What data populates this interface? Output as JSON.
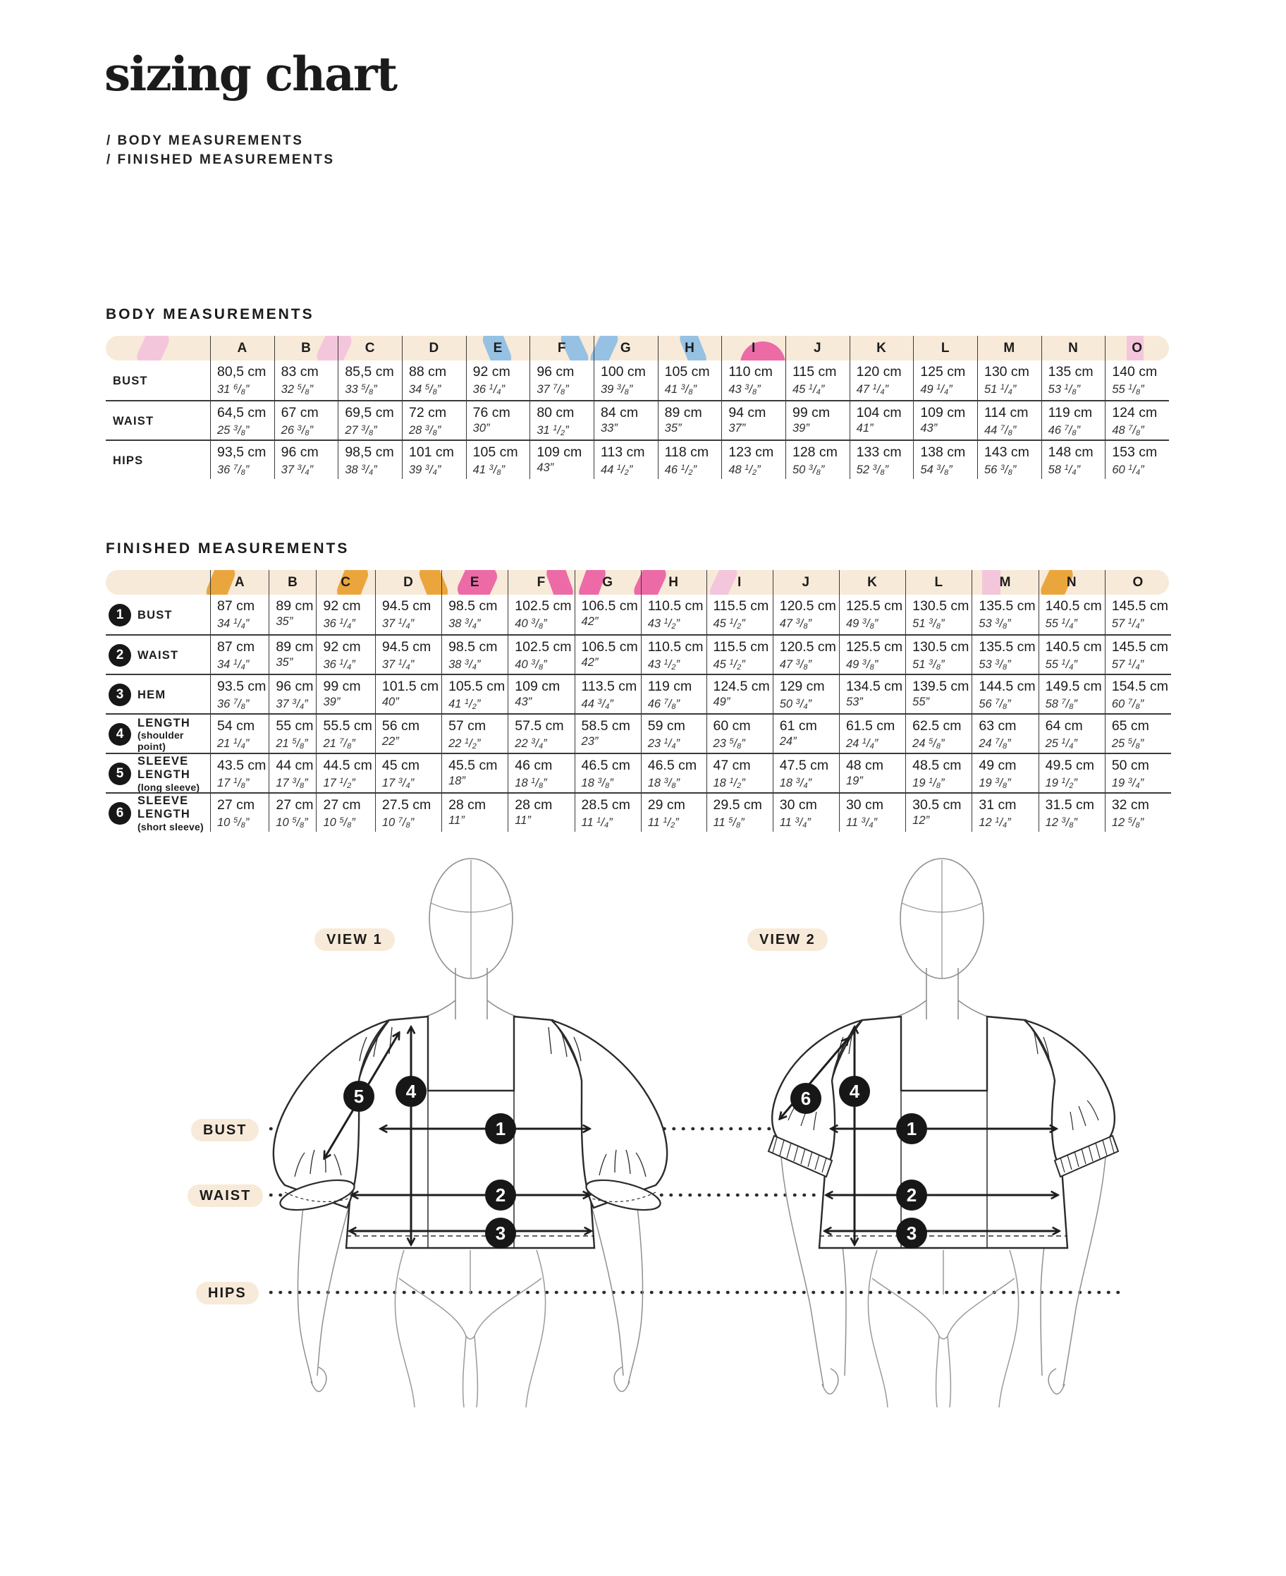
{
  "page": {
    "title": "sizing chart",
    "subtitle_lines": [
      "/ BODY MEASUREMENTS",
      "/ FINISHED MEASUREMENTS"
    ]
  },
  "units": {
    "cm": "cm",
    "inch_mark": "”"
  },
  "sizes": [
    "A",
    "B",
    "C",
    "D",
    "E",
    "F",
    "G",
    "H",
    "I",
    "J",
    "K",
    "L",
    "M",
    "N",
    "O"
  ],
  "body_measurements": {
    "heading": "BODY MEASUREMENTS",
    "rows": [
      {
        "label": "BUST",
        "cm": [
          "80,5",
          "83",
          "85,5",
          "88",
          "92",
          "96",
          "100",
          "105",
          "110",
          "115",
          "120",
          "125",
          "130",
          "135",
          "140"
        ],
        "in": [
          "31 6/8",
          "32 5/8",
          "33 5/8",
          "34 5/8",
          "36 1/4",
          "37 7/8",
          "39 3/8",
          "41 3/8",
          "43 3/8",
          "45 1/4",
          "47 1/4",
          "49 1/4",
          "51 1/4",
          "53 1/8",
          "55 1/8"
        ]
      },
      {
        "label": "WAIST",
        "cm": [
          "64,5",
          "67",
          "69,5",
          "72",
          "76",
          "80",
          "84",
          "89",
          "94",
          "99",
          "104",
          "109",
          "114",
          "119",
          "124"
        ],
        "in": [
          "25 3/8",
          "26 3/8",
          "27 3/8",
          "28 3/8",
          "30",
          "31 1/2",
          "33",
          "35",
          "37",
          "39",
          "41",
          "43",
          "44 7/8",
          "46 7/8",
          "48 7/8"
        ]
      },
      {
        "label": "HIPS",
        "cm": [
          "93,5",
          "96",
          "98,5",
          "101",
          "105",
          "109",
          "113",
          "118",
          "123",
          "128",
          "133",
          "138",
          "143",
          "148",
          "153"
        ],
        "in": [
          "36 7/8",
          "37 3/4",
          "38 3/4",
          "39 3/4",
          "41 3/8",
          "43",
          "44 1/2",
          "46 1/2",
          "48 1/2",
          "50 3/8",
          "52 3/8",
          "54 3/8",
          "56 3/8",
          "58 1/4",
          "60 1/4"
        ]
      }
    ]
  },
  "finished_measurements": {
    "heading": "FINISHED MEASUREMENTS",
    "rows": [
      {
        "num": "1",
        "label": "BUST",
        "sublabel": "",
        "cm": [
          "87",
          "89",
          "92",
          "94.5",
          "98.5",
          "102.5",
          "106.5",
          "110.5",
          "115.5",
          "120.5",
          "125.5",
          "130.5",
          "135.5",
          "140.5",
          "145.5"
        ],
        "in": [
          "34 1/4",
          "35",
          "36 1/4",
          "37 1/4",
          "38 3/4",
          "40 3/8",
          "42",
          "43 1/2",
          "45 1/2",
          "47 3/8",
          "49 3/8",
          "51 3/8",
          "53 3/8",
          "55 1/4",
          "57 1/4"
        ]
      },
      {
        "num": "2",
        "label": "WAIST",
        "sublabel": "",
        "cm": [
          "87",
          "89",
          "92",
          "94.5",
          "98.5",
          "102.5",
          "106.5",
          "110.5",
          "115.5",
          "120.5",
          "125.5",
          "130.5",
          "135.5",
          "140.5",
          "145.5"
        ],
        "in": [
          "34 1/4",
          "35",
          "36 1/4",
          "37 1/4",
          "38 3/4",
          "40 3/8",
          "42",
          "43 1/2",
          "45 1/2",
          "47 3/8",
          "49 3/8",
          "51 3/8",
          "53 3/8",
          "55 1/4",
          "57 1/4"
        ]
      },
      {
        "num": "3",
        "label": "HEM",
        "sublabel": "",
        "cm": [
          "93.5",
          "96",
          "99",
          "101.5",
          "105.5",
          "109",
          "113.5",
          "119",
          "124.5",
          "129",
          "134.5",
          "139.5",
          "144.5",
          "149.5",
          "154.5"
        ],
        "in": [
          "36 7/8",
          "37 3/4",
          "39",
          "40",
          "41 1/2",
          "43",
          "44 3/4",
          "46 7/8",
          "49",
          "50 3/4",
          "53",
          "55",
          "56 7/8",
          "58 7/8",
          "60 7/8"
        ]
      },
      {
        "num": "4",
        "label": "LENGTH",
        "sublabel": "(shoulder point)",
        "cm": [
          "54",
          "55",
          "55.5",
          "56",
          "57",
          "57.5",
          "58.5",
          "59",
          "60",
          "61",
          "61.5",
          "62.5",
          "63",
          "64",
          "65"
        ],
        "in": [
          "21 1/4",
          "21 5/8",
          "21 7/8",
          "22",
          "22 1/2",
          "22 3/4",
          "23",
          "23 1/4",
          "23 5/8",
          "24",
          "24 1/4",
          "24 5/8",
          "24 7/8",
          "25 1/4",
          "25 5/8"
        ]
      },
      {
        "num": "5",
        "label": "SLEEVE LENGTH",
        "sublabel": "(long sleeve)",
        "cm": [
          "43.5",
          "44",
          "44.5",
          "45",
          "45.5",
          "46",
          "46.5",
          "46.5",
          "47",
          "47.5",
          "48",
          "48.5",
          "49",
          "49.5",
          "50"
        ],
        "in": [
          "17 1/8",
          "17 3/8",
          "17 1/2",
          "17 3/4",
          "18",
          "18 1/8",
          "18 3/8",
          "18 3/8",
          "18 1/2",
          "18 3/4",
          "19",
          "19 1/8",
          "19 3/8",
          "19 1/2",
          "19 3/4"
        ]
      },
      {
        "num": "6",
        "label": "SLEEVE LENGTH",
        "sublabel": "(short sleeve)",
        "cm": [
          "27",
          "27",
          "27",
          "27.5",
          "28",
          "28",
          "28.5",
          "29",
          "29.5",
          "30",
          "30",
          "30.5",
          "31",
          "31.5",
          "32"
        ],
        "in": [
          "10 5/8",
          "10 5/8",
          "10 5/8",
          "10 7/8",
          "11",
          "11",
          "11 1/4",
          "11 1/2",
          "11 5/8",
          "11 3/4",
          "11 3/4",
          "12",
          "12 1/4",
          "12 3/8",
          "12 5/8"
        ]
      }
    ]
  },
  "diagram": {
    "view1_label": "VIEW 1",
    "view2_label": "VIEW 2",
    "side_labels": [
      "BUST",
      "WAIST",
      "HIPS"
    ],
    "view1_markers": {
      "sleeve": "5",
      "length": "4",
      "bust": "1",
      "waist": "2",
      "hem": "3"
    },
    "view2_markers": {
      "sleeve": "6",
      "length": "4",
      "bust": "1",
      "waist": "2",
      "hem": "3"
    }
  },
  "colors": {
    "cream": "#f8ead9",
    "ink": "#1d1d1d",
    "table_line": "#3a3a3a",
    "pink_light": "#f4c6dc",
    "pink_hot": "#ec6ba6",
    "blue": "#96c1e3",
    "orange": "#eaa63d"
  }
}
